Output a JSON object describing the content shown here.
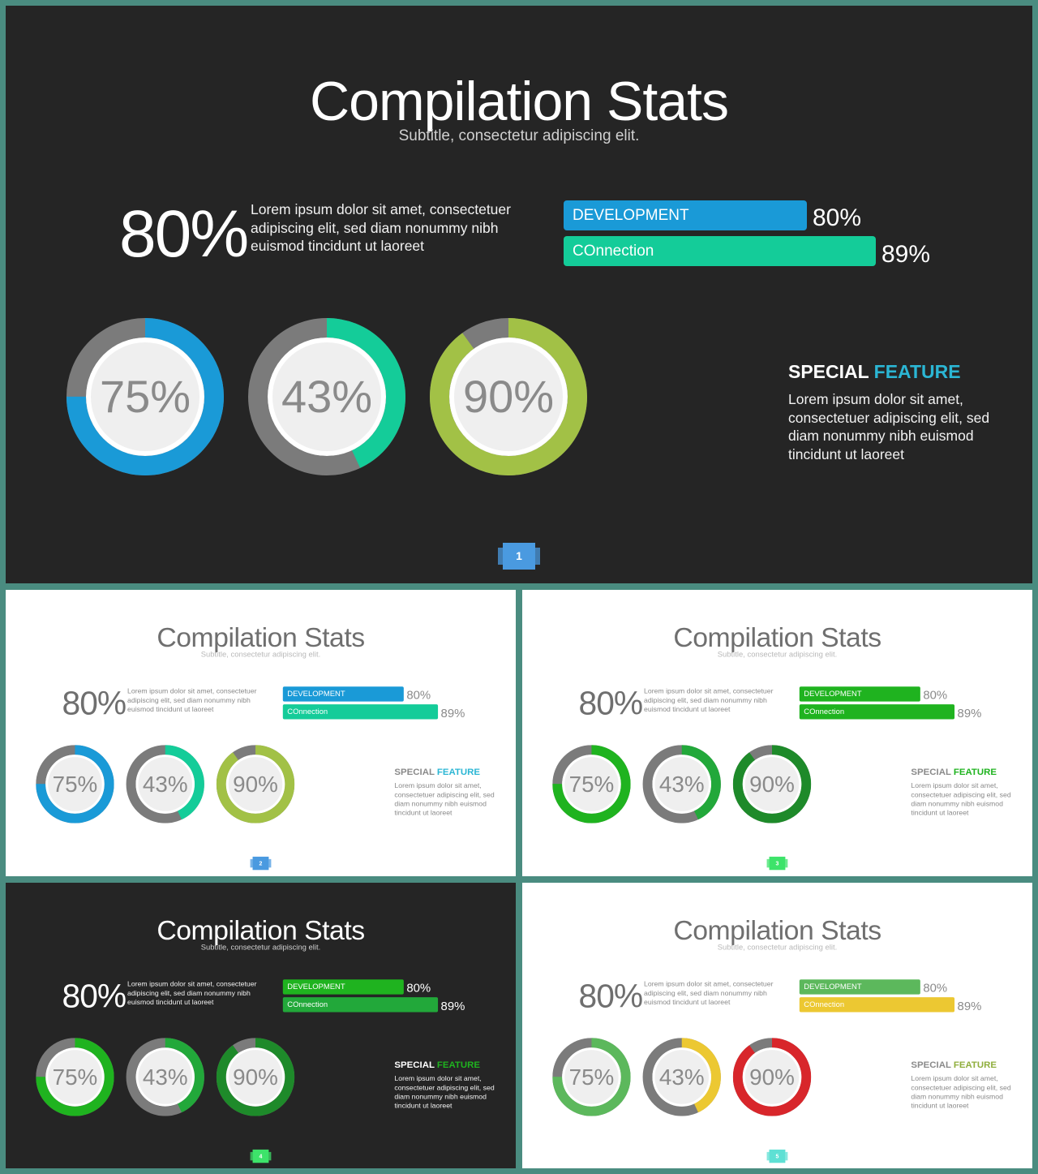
{
  "slides": [
    {
      "theme": "dark",
      "title": "Compilation Stats",
      "subtitle": "Subtitle, consectetur adipiscing elit.",
      "big_stat": "80%",
      "description": "Lorem ipsum dolor sit amet, consectetuer adipiscing elit, sed diam nonummy nibh euismod tincidunt ut laoreet",
      "bars": [
        {
          "label": "DEVELOPMENT",
          "pct_text": "80%",
          "value": 80,
          "color": "#1a9ad7"
        },
        {
          "label": "COnnection",
          "pct_text": "89%",
          "value": 89,
          "color": "#14cc99"
        }
      ],
      "donuts": [
        {
          "label": "75%",
          "value": 75,
          "color": "#1a9ad7"
        },
        {
          "label": "43%",
          "value": 43,
          "color": "#14cc99"
        },
        {
          "label": "90%",
          "value": 90,
          "color": "#a2c146"
        }
      ],
      "feature_word1": "SPECIAL",
      "feature_word2": "FEATURE",
      "feature_color": "#2bb6d4",
      "feature_text": "Lorem ipsum dolor sit amet, consectetuer adipiscing elit, sed diam nonummy nibh euismod tincidunt ut laoreet",
      "page": "1",
      "page_color": "#4a9ae0"
    },
    {
      "theme": "light",
      "title": "Compilation Stats",
      "subtitle": "Subtitle, consectetur adipiscing elit.",
      "big_stat": "80%",
      "description": "Lorem ipsum dolor sit amet, consectetuer adipiscing elit, sed diam nonummy nibh euismod tincidunt ut laoreet",
      "bars": [
        {
          "label": "DEVELOPMENT",
          "pct_text": "80%",
          "value": 80,
          "color": "#1a9ad7"
        },
        {
          "label": "COnnection",
          "pct_text": "89%",
          "value": 89,
          "color": "#14cc99"
        }
      ],
      "donuts": [
        {
          "label": "75%",
          "value": 75,
          "color": "#1a9ad7"
        },
        {
          "label": "43%",
          "value": 43,
          "color": "#14cc99"
        },
        {
          "label": "90%",
          "value": 90,
          "color": "#a2c146"
        }
      ],
      "feature_word1": "SPECIAL",
      "feature_word2": "FEATURE",
      "feature_color": "#2bb6d4",
      "feature_text": "Lorem ipsum dolor sit amet, consectetuer adipiscing elit, sed diam nonummy nibh euismod tincidunt ut laoreet",
      "page": "2",
      "page_color": "#4a9ae0"
    },
    {
      "theme": "light",
      "title": "Compilation Stats",
      "subtitle": "Subtitle, consectetur adipiscing elit.",
      "big_stat": "80%",
      "description": "Lorem ipsum dolor sit amet, consectetuer adipiscing elit, sed diam nonummy nibh euismod tincidunt ut laoreet",
      "bars": [
        {
          "label": "DEVELOPMENT",
          "pct_text": "80%",
          "value": 80,
          "color": "#1fb31f"
        },
        {
          "label": "COnnection",
          "pct_text": "89%",
          "value": 89,
          "color": "#1fb31f"
        }
      ],
      "donuts": [
        {
          "label": "75%",
          "value": 75,
          "color": "#1fb31f"
        },
        {
          "label": "43%",
          "value": 43,
          "color": "#22a83a"
        },
        {
          "label": "90%",
          "value": 90,
          "color": "#1e8a2a"
        }
      ],
      "feature_word1": "SPECIAL",
      "feature_word2": "FEATURE",
      "feature_color": "#1fb31f",
      "feature_text": "Lorem ipsum dolor sit amet, consectetuer adipiscing elit, sed diam nonummy nibh euismod tincidunt ut laoreet",
      "page": "3",
      "page_color": "#3de36a"
    },
    {
      "theme": "dark",
      "title": "Compilation Stats",
      "subtitle": "Subtitle, consectetur adipiscing elit.",
      "big_stat": "80%",
      "description": "Lorem ipsum dolor sit amet, consectetuer adipiscing elit, sed diam nonummy nibh euismod tincidunt ut laoreet",
      "bars": [
        {
          "label": "DEVELOPMENT",
          "pct_text": "80%",
          "value": 80,
          "color": "#1fb31f"
        },
        {
          "label": "COnnection",
          "pct_text": "89%",
          "value": 89,
          "color": "#22a83a"
        }
      ],
      "donuts": [
        {
          "label": "75%",
          "value": 75,
          "color": "#1fb31f"
        },
        {
          "label": "43%",
          "value": 43,
          "color": "#22a83a"
        },
        {
          "label": "90%",
          "value": 90,
          "color": "#1e8a2a"
        }
      ],
      "feature_word1": "SPECIAL",
      "feature_word2": "FEATURE",
      "feature_color": "#1fb31f",
      "feature_text": "Lorem ipsum dolor sit amet, consectetuer adipiscing elit, sed diam nonummy nibh euismod tincidunt ut laoreet",
      "page": "4",
      "page_color": "#3de36a"
    },
    {
      "theme": "light",
      "title": "Compilation Stats",
      "subtitle": "Subtitle, consectetur adipiscing elit.",
      "big_stat": "80%",
      "description": "Lorem ipsum dolor sit amet, consectetuer adipiscing elit, sed diam nonummy nibh euismod tincidunt ut laoreet",
      "bars": [
        {
          "label": "DEVELOPMENT",
          "pct_text": "80%",
          "value": 80,
          "color": "#5cb85c"
        },
        {
          "label": "COnnection",
          "pct_text": "89%",
          "value": 89,
          "color": "#ecc832"
        }
      ],
      "donuts": [
        {
          "label": "75%",
          "value": 75,
          "color": "#5cb85c"
        },
        {
          "label": "43%",
          "value": 43,
          "color": "#ecc832"
        },
        {
          "label": "90%",
          "value": 90,
          "color": "#d8262b"
        }
      ],
      "feature_word1": "SPECIAL",
      "feature_word2": "FEATURE",
      "feature_color": "#8fae3c",
      "feature_text": "Lorem ipsum dolor sit amet, consectetuer adipiscing elit, sed diam nonummy nibh euismod tincidunt ut laoreet",
      "page": "5",
      "page_color": "#5ee0d4"
    }
  ]
}
